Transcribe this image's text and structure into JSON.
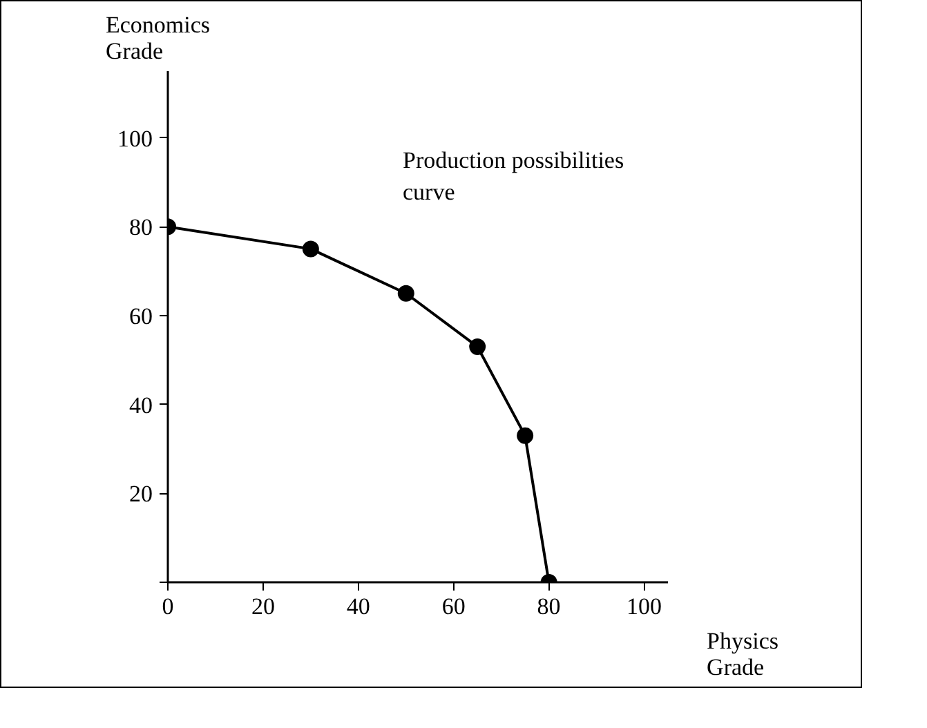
{
  "chart_data": {
    "type": "line",
    "xlabel": "Physics Grade",
    "ylabel": "Economics Grade",
    "annotations": [
      "Production possibilities curve"
    ],
    "x": [
      0,
      30,
      50,
      65,
      75,
      80
    ],
    "series": [
      {
        "color": "#000000",
        "values": [
          80,
          75,
          65,
          53,
          33,
          0
        ]
      }
    ],
    "marker": "circle",
    "line_style": "solid",
    "grid": false,
    "xlim": [
      0,
      105
    ],
    "ylim": [
      0,
      115
    ],
    "xticks": [
      {
        "value": 0,
        "label": "0"
      },
      20,
      40,
      60,
      80,
      100
    ],
    "yticks": [
      {
        "value": 0,
        "label": null
      },
      20,
      40,
      60,
      80,
      100
    ]
  }
}
